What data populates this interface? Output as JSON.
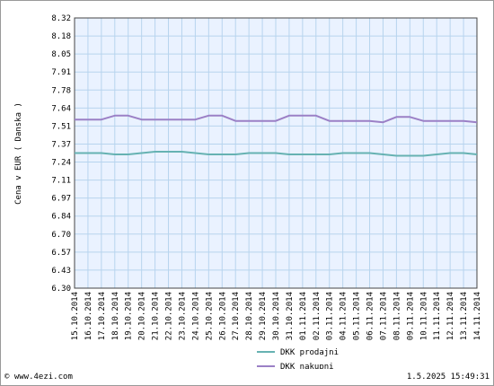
{
  "chart_data": {
    "type": "line",
    "ylabel": "Cena v EUR ( Danska )",
    "ylim": [
      6.3,
      8.32
    ],
    "yticks": [
      "8.32",
      "8.18",
      "8.05",
      "7.91",
      "7.78",
      "7.64",
      "7.51",
      "7.37",
      "7.24",
      "7.11",
      "6.97",
      "6.84",
      "6.70",
      "6.57",
      "6.43",
      "6.30"
    ],
    "grid": true,
    "legend_position": "bottom-center",
    "categories": [
      "15.10.2014",
      "16.10.2014",
      "17.10.2014",
      "18.10.2014",
      "19.10.2014",
      "20.10.2014",
      "21.10.2014",
      "22.10.2014",
      "23.10.2014",
      "24.10.2014",
      "25.10.2014",
      "26.10.2014",
      "27.10.2014",
      "28.10.2014",
      "29.10.2014",
      "30.10.2014",
      "31.10.2014",
      "01.11.2014",
      "02.11.2014",
      "03.11.2014",
      "04.11.2014",
      "05.11.2014",
      "06.11.2014",
      "07.11.2014",
      "08.11.2014",
      "09.11.2014",
      "10.11.2014",
      "11.11.2014",
      "12.11.2014",
      "13.11.2014",
      "14.11.2014"
    ],
    "series": [
      {
        "name": "DKK prodajni",
        "color": "#66b2b2",
        "values": [
          7.31,
          7.31,
          7.31,
          7.3,
          7.3,
          7.31,
          7.32,
          7.32,
          7.32,
          7.31,
          7.3,
          7.3,
          7.3,
          7.31,
          7.31,
          7.31,
          7.3,
          7.3,
          7.3,
          7.3,
          7.31,
          7.31,
          7.31,
          7.3,
          7.29,
          7.29,
          7.29,
          7.3,
          7.31,
          7.31,
          7.3
        ]
      },
      {
        "name": "DKK nakupni",
        "color": "#9b80c6",
        "values": [
          7.56,
          7.56,
          7.56,
          7.59,
          7.59,
          7.56,
          7.56,
          7.56,
          7.56,
          7.56,
          7.59,
          7.59,
          7.55,
          7.55,
          7.55,
          7.55,
          7.59,
          7.59,
          7.59,
          7.55,
          7.55,
          7.55,
          7.55,
          7.54,
          7.58,
          7.58,
          7.55,
          7.55,
          7.55,
          7.55,
          7.54
        ]
      }
    ]
  },
  "footer": {
    "source": "© www.4ezi.com",
    "timestamp": "1.5.2025 15:49:31"
  },
  "colors": {
    "plot_bg": "#eaf2ff",
    "grid": "#b7d4ee",
    "axis": "#444444"
  }
}
